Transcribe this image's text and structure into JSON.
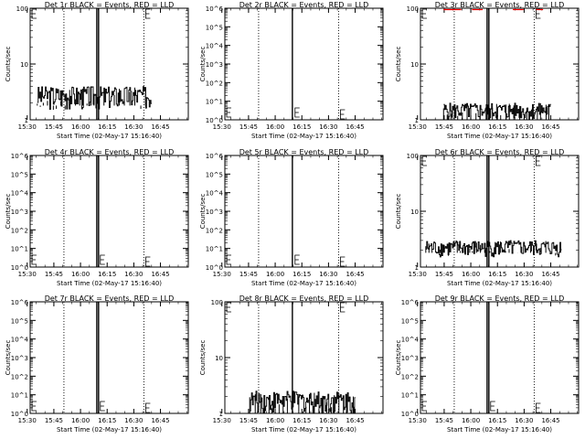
{
  "figure": {
    "background": "#ffffff",
    "events_color": "#000000",
    "lld_color": "#ff0000"
  },
  "chart_data": [
    {
      "type": "line",
      "title": "Det 1r BLACK = Events, RED = LLD",
      "xlabel": "Start Time (02-May-17 15:16:40)",
      "ylabel": "Counts/sec",
      "yscale": "log",
      "ylim": [
        1,
        100
      ],
      "ytick_labels": [
        "1",
        "10",
        "100"
      ],
      "xtick_labels": [
        "15:30",
        "15:45",
        "16:00",
        "16:15",
        "16:30",
        "16:45"
      ],
      "xlim_minutes": [
        15,
        104
      ],
      "events_range": {
        "start": 19,
        "end": 83,
        "min": 1.5,
        "max": 4
      },
      "vlines_dotted": [
        34,
        79
      ],
      "vlines_solid": [
        52.5,
        53.5
      ],
      "lld_visible": false
    },
    {
      "type": "line",
      "title": "Det 2r BLACK = Events, RED = LLD",
      "xlabel": "Start Time (02-May-17 15:16:40)",
      "ylabel": "Counts/sec",
      "yscale": "log",
      "ylim": [
        1,
        1000000
      ],
      "ytick_labels": [
        "10^0",
        "10^1",
        "10^2",
        "10^3",
        "10^4",
        "10^5",
        "10^6"
      ],
      "xtick_labels": [
        "15:30",
        "15:45",
        "16:00",
        "16:15",
        "16:30",
        "16:45"
      ],
      "xlim_minutes": [
        15,
        104
      ],
      "events_range": null,
      "vlines_dotted": [
        34,
        79
      ],
      "vlines_solid": [
        53
      ],
      "lld_visible": false
    },
    {
      "type": "line",
      "title": "Det 3r BLACK = Events, RED = LLD",
      "xlabel": "Start Time (02-May-17 15:16:40)",
      "ylabel": "Counts/sec",
      "yscale": "log",
      "ylim": [
        1,
        100
      ],
      "ytick_labels": [
        "1",
        "10",
        "100"
      ],
      "xtick_labels": [
        "15:30",
        "15:45",
        "16:00",
        "16:15",
        "16:30",
        "16:45"
      ],
      "xlim_minutes": [
        15,
        104
      ],
      "events_range": {
        "start": 28,
        "end": 88,
        "min": 1,
        "max": 2
      },
      "vlines_dotted": [
        34,
        79
      ],
      "vlines_solid": [
        52.5,
        53.5
      ],
      "lld_visible": true
    },
    {
      "type": "line",
      "title": "Det 4r BLACK = Events, RED = LLD",
      "xlabel": "Start Time (02-May-17 15:16:40)",
      "ylabel": "Counts/sec",
      "yscale": "log",
      "ylim": [
        1,
        1000000
      ],
      "ytick_labels": [
        "10^0",
        "10^1",
        "10^2",
        "10^3",
        "10^4",
        "10^5",
        "10^6"
      ],
      "xtick_labels": [
        "15:30",
        "15:45",
        "16:00",
        "16:15",
        "16:30",
        "16:45"
      ],
      "xlim_minutes": [
        15,
        104
      ],
      "events_range": null,
      "vlines_dotted": [
        34,
        79
      ],
      "vlines_solid": [
        52.5,
        53.5
      ],
      "lld_visible": false
    },
    {
      "type": "line",
      "title": "Det 5r BLACK = Events, RED = LLD",
      "xlabel": "Start Time (02-May-17 15:16:40)",
      "ylabel": "Counts/sec",
      "yscale": "log",
      "ylim": [
        1,
        1000000
      ],
      "ytick_labels": [
        "10^0",
        "10^1",
        "10^2",
        "10^3",
        "10^4",
        "10^5",
        "10^6"
      ],
      "xtick_labels": [
        "15:30",
        "15:45",
        "16:00",
        "16:15",
        "16:30",
        "16:45"
      ],
      "xlim_minutes": [
        15,
        104
      ],
      "events_range": null,
      "vlines_dotted": [
        34,
        79
      ],
      "vlines_solid": [
        53
      ],
      "lld_visible": false
    },
    {
      "type": "line",
      "title": "Det 6r BLACK = Events, RED = LLD",
      "xlabel": "Start Time (02-May-17 15:16:40)",
      "ylabel": "Counts/sec",
      "yscale": "log",
      "ylim": [
        1,
        100
      ],
      "ytick_labels": [
        "1",
        "10",
        "100"
      ],
      "xtick_labels": [
        "15:30",
        "15:45",
        "16:00",
        "16:15",
        "16:30",
        "16:45"
      ],
      "xlim_minutes": [
        15,
        104
      ],
      "events_range": {
        "start": 18,
        "end": 94,
        "min": 1.5,
        "max": 3
      },
      "vlines_dotted": [
        34,
        79
      ],
      "vlines_solid": [
        52.5,
        53.5
      ],
      "lld_visible": false
    },
    {
      "type": "line",
      "title": "Det 7r BLACK = Events, RED = LLD",
      "xlabel": "Start Time (02-May-17 15:16:40)",
      "ylabel": "Counts/sec",
      "yscale": "log",
      "ylim": [
        1,
        1000000
      ],
      "ytick_labels": [
        "10^0",
        "10^1",
        "10^2",
        "10^3",
        "10^4",
        "10^5",
        "10^6"
      ],
      "xtick_labels": [
        "15:30",
        "15:45",
        "16:00",
        "16:15",
        "16:30",
        "16:45"
      ],
      "xlim_minutes": [
        15,
        104
      ],
      "events_range": null,
      "vlines_dotted": [
        34,
        79
      ],
      "vlines_solid": [
        52.5,
        53.5
      ],
      "lld_visible": false
    },
    {
      "type": "line",
      "title": "Det 8r BLACK = Events, RED = LLD",
      "xlabel": "Start Time (02-May-17 15:16:40)",
      "ylabel": "Counts/sec",
      "yscale": "log",
      "ylim": [
        1,
        100
      ],
      "ytick_labels": [
        "1",
        "10",
        "100"
      ],
      "xtick_labels": [
        "15:30",
        "15:45",
        "16:00",
        "16:15",
        "16:30",
        "16:45"
      ],
      "xlim_minutes": [
        15,
        104
      ],
      "events_range": {
        "start": 29,
        "end": 88,
        "min": 1,
        "max": 2.5
      },
      "vlines_dotted": [
        34,
        79
      ],
      "vlines_solid": [
        53
      ],
      "lld_visible": false
    },
    {
      "type": "line",
      "title": "Det 9r BLACK = Events, RED = LLD",
      "xlabel": "Start Time (02-May-17 15:16:40)",
      "ylabel": "Counts/sec",
      "yscale": "log",
      "ylim": [
        1,
        1000000
      ],
      "ytick_labels": [
        "10^0",
        "10^1",
        "10^2",
        "10^3",
        "10^4",
        "10^5",
        "10^6"
      ],
      "xtick_labels": [
        "15:30",
        "15:45",
        "16:00",
        "16:15",
        "16:30",
        "16:45"
      ],
      "xlim_minutes": [
        15,
        104
      ],
      "events_range": null,
      "vlines_dotted": [
        34,
        79
      ],
      "vlines_solid": [
        52.5,
        53.5
      ],
      "lld_visible": false
    }
  ]
}
